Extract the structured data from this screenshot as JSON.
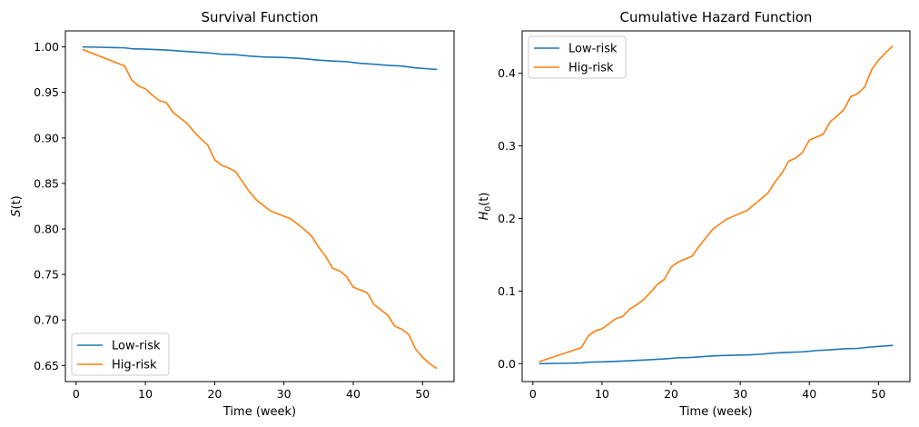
{
  "chart_data": [
    {
      "type": "line",
      "title": "Survival Function",
      "xlabel": "Time (week)",
      "ylabel_base": "S",
      "ylabel_sub": "",
      "ylabel_arg": "(t)",
      "xlim": [
        -1.55,
        54.55
      ],
      "ylim": [
        0.6323,
        1.0176
      ],
      "xticks": [
        0,
        10,
        20,
        30,
        40,
        50
      ],
      "xtick_labels": [
        "0",
        "10",
        "20",
        "30",
        "40",
        "50"
      ],
      "yticks": [
        0.65,
        0.7,
        0.75,
        0.8,
        0.85,
        0.9,
        0.95,
        1.0
      ],
      "ytick_labels": [
        "0.65",
        "0.70",
        "0.75",
        "0.80",
        "0.85",
        "0.90",
        "0.95",
        "1.00"
      ],
      "legend_position": "lower-left",
      "series": [
        {
          "name": "Low-risk",
          "color": "#1f77b4",
          "x": [
            1,
            4,
            7,
            8,
            10,
            13,
            16,
            19,
            21,
            23,
            25,
            27,
            30,
            31,
            33,
            35,
            37,
            39,
            41,
            43,
            45,
            47,
            49,
            51,
            52
          ],
          "y": [
            1.0,
            0.9995,
            0.999,
            0.998,
            0.9976,
            0.9966,
            0.995,
            0.9935,
            0.992,
            0.9915,
            0.99,
            0.989,
            0.9883,
            0.988,
            0.987,
            0.9855,
            0.9845,
            0.9838,
            0.982,
            0.981,
            0.9797,
            0.979,
            0.977,
            0.9758,
            0.9753
          ]
        },
        {
          "name": "Hig-risk",
          "color": "#ff7f0e",
          "x": [
            1,
            7,
            8,
            9,
            10,
            11,
            12,
            13,
            14,
            15,
            16,
            17,
            18,
            19,
            20,
            21,
            22,
            23,
            24,
            25,
            26,
            27,
            28,
            29,
            30,
            31,
            32,
            33,
            34,
            35,
            36,
            37,
            38,
            39,
            40,
            41,
            42,
            43,
            44,
            45,
            46,
            47,
            48,
            49,
            50,
            51,
            52
          ],
          "y": [
            0.997,
            0.979,
            0.964,
            0.957,
            0.954,
            0.947,
            0.941,
            0.939,
            0.928,
            0.922,
            0.916,
            0.907,
            0.899,
            0.892,
            0.876,
            0.87,
            0.867,
            0.863,
            0.852,
            0.841,
            0.832,
            0.826,
            0.82,
            0.817,
            0.814,
            0.811,
            0.805,
            0.799,
            0.792,
            0.78,
            0.77,
            0.757,
            0.754,
            0.748,
            0.736,
            0.733,
            0.73,
            0.717,
            0.711,
            0.705,
            0.693,
            0.69,
            0.684,
            0.668,
            0.659,
            0.652,
            0.647
          ]
        }
      ]
    },
    {
      "type": "line",
      "title": "Cumulative Hazard Function",
      "xlabel": "Time (week)",
      "ylabel_base": "H",
      "ylabel_sub": "0",
      "ylabel_arg": "(t)",
      "xlim": [
        -1.55,
        54.55
      ],
      "ylim": [
        -0.0247,
        0.4584
      ],
      "xticks": [
        0,
        10,
        20,
        30,
        40,
        50
      ],
      "xtick_labels": [
        "0",
        "10",
        "20",
        "30",
        "40",
        "50"
      ],
      "yticks": [
        0.0,
        0.1,
        0.2,
        0.3,
        0.4
      ],
      "ytick_labels": [
        "0.0",
        "0.1",
        "0.2",
        "0.3",
        "0.4"
      ],
      "legend_position": "upper-left",
      "series": [
        {
          "name": "Low-risk",
          "color": "#1f77b4",
          "x": [
            1,
            4,
            7,
            8,
            10,
            13,
            16,
            19,
            21,
            23,
            25,
            27,
            30,
            31,
            33,
            35,
            37,
            39,
            41,
            43,
            45,
            47,
            49,
            51,
            52
          ],
          "y": [
            0.0,
            0.0005,
            0.001,
            0.002,
            0.0025,
            0.0035,
            0.005,
            0.0065,
            0.008,
            0.0085,
            0.01,
            0.011,
            0.0118,
            0.012,
            0.013,
            0.0146,
            0.0156,
            0.0163,
            0.018,
            0.019,
            0.0204,
            0.021,
            0.023,
            0.0243,
            0.025
          ]
        },
        {
          "name": "Hig-risk",
          "color": "#ff7f0e",
          "x": [
            1,
            7,
            8,
            9,
            10,
            11,
            12,
            13,
            14,
            15,
            16,
            17,
            18,
            19,
            20,
            21,
            22,
            23,
            24,
            25,
            26,
            27,
            28,
            29,
            30,
            31,
            32,
            33,
            34,
            35,
            36,
            37,
            38,
            39,
            40,
            41,
            42,
            43,
            44,
            45,
            46,
            47,
            48,
            49,
            50,
            51,
            52
          ],
          "y": [
            0.003,
            0.022,
            0.038,
            0.045,
            0.048,
            0.055,
            0.062,
            0.065,
            0.075,
            0.081,
            0.088,
            0.098,
            0.109,
            0.116,
            0.133,
            0.14,
            0.144,
            0.148,
            0.161,
            0.173,
            0.185,
            0.192,
            0.199,
            0.203,
            0.207,
            0.211,
            0.219,
            0.227,
            0.235,
            0.25,
            0.262,
            0.279,
            0.283,
            0.291,
            0.308,
            0.312,
            0.316,
            0.333,
            0.341,
            0.35,
            0.368,
            0.372,
            0.381,
            0.405,
            0.418,
            0.428,
            0.437
          ]
        }
      ]
    }
  ]
}
